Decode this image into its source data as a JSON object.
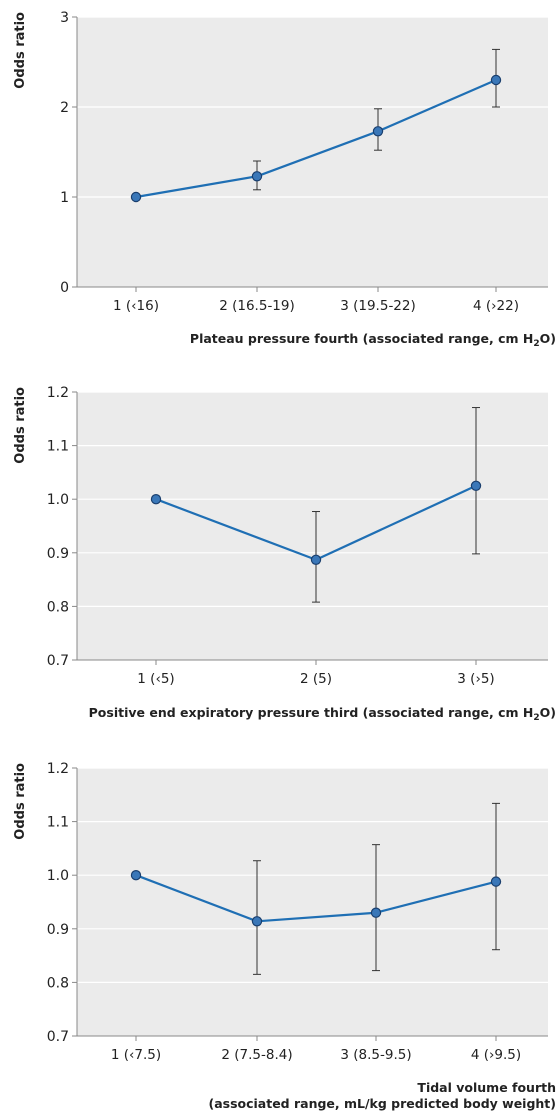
{
  "chart_data": [
    {
      "type": "line",
      "ylabel": "Odds ratio",
      "xlabel_main": "Plateau pressure fourth (associated range, cm H",
      "xlabel_sub": "2",
      "xlabel_end": "O)",
      "categories": [
        "1 (‹16)",
        "2 (16.5-19)",
        "3 (19.5-22)",
        "4 (›22)"
      ],
      "values": [
        1.0,
        1.23,
        1.73,
        2.3
      ],
      "ci_lower": [
        1.0,
        1.08,
        1.52,
        2.0
      ],
      "ci_upper": [
        1.0,
        1.4,
        1.98,
        2.64
      ],
      "ylim": [
        0,
        3
      ],
      "yticks": [
        "0",
        "1",
        "2",
        "3"
      ],
      "ytick_values": [
        0,
        1,
        2,
        3
      ]
    },
    {
      "type": "line",
      "ylabel": "Odds ratio",
      "xlabel_main": "Positive end expiratory pressure third (associated range, cm H",
      "xlabel_sub": "2",
      "xlabel_end": "O)",
      "categories": [
        "1 (‹5)",
        "2 (5)",
        "3 (›5)"
      ],
      "values": [
        1.0,
        0.887,
        1.025
      ],
      "ci_lower": [
        1.0,
        0.808,
        0.898
      ],
      "ci_upper": [
        1.0,
        0.977,
        1.171
      ],
      "ylim": [
        0.7,
        1.2
      ],
      "yticks": [
        "0.7",
        "0.8",
        "0.9",
        "1.0",
        "1.1",
        "1.2"
      ],
      "ytick_values": [
        0.7,
        0.8,
        0.9,
        1.0,
        1.1,
        1.2
      ]
    },
    {
      "type": "line",
      "ylabel": "Odds ratio",
      "xlabel_line1": "Tidal volume fourth",
      "xlabel_line2": "(associated range, mL/kg predicted body weight)",
      "categories": [
        "1 (‹7.5)",
        "2 (7.5-8.4)",
        "3 (8.5-9.5)",
        "4 (›9.5)"
      ],
      "values": [
        1.0,
        0.914,
        0.93,
        0.988
      ],
      "ci_lower": [
        1.0,
        0.815,
        0.822,
        0.861
      ],
      "ci_upper": [
        1.0,
        1.027,
        1.057,
        1.134
      ],
      "ylim": [
        0.7,
        1.2
      ],
      "yticks": [
        "0.7",
        "0.8",
        "0.9",
        "1.0",
        "1.1",
        "1.2"
      ],
      "ytick_values": [
        0.7,
        0.8,
        0.9,
        1.0,
        1.1,
        1.2
      ]
    }
  ],
  "colors": {
    "panel_bg": "#ebebeb",
    "grid": "#ffffff",
    "line": "#1f6fb4",
    "point_fill": "#3a77b8",
    "point_stroke": "#1a3f6e",
    "errorbar": "#333333",
    "axis": "#888888",
    "text": "#222222"
  }
}
